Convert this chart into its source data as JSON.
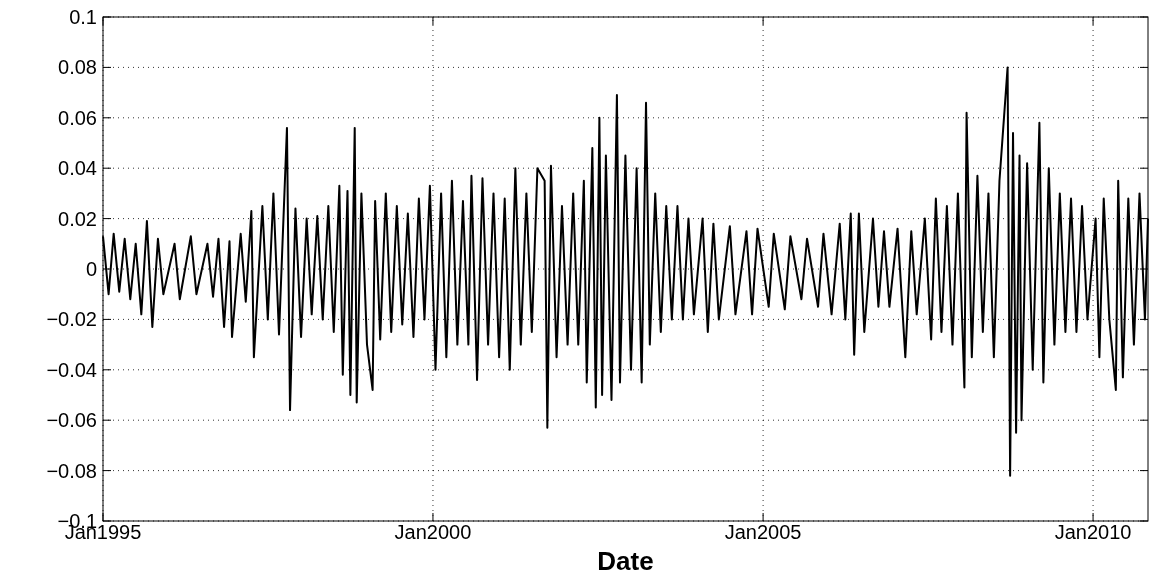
{
  "chart_data": {
    "type": "line",
    "xlabel": "Date",
    "grid": true,
    "xlim": [
      "1995-01-01",
      "2010-11-01"
    ],
    "xticks": [
      {
        "value": "1995-01-01",
        "label": "Jan1995"
      },
      {
        "value": "2000-01-01",
        "label": "Jan2000"
      },
      {
        "value": "2005-01-01",
        "label": "Jan2005"
      },
      {
        "value": "2010-01-01",
        "label": "Jan2010"
      }
    ],
    "ylim": [
      -0.1,
      0.1
    ],
    "yticks": [
      {
        "value": -0.1,
        "label": "−0.1"
      },
      {
        "value": -0.08,
        "label": "−0.08"
      },
      {
        "value": -0.06,
        "label": "−0.06"
      },
      {
        "value": -0.04,
        "label": "−0.04"
      },
      {
        "value": -0.02,
        "label": "−0.02"
      },
      0,
      0.02,
      0.04,
      0.06,
      0.08,
      0.1
    ],
    "series": [
      {
        "color": "#000000",
        "x": [
          "1995-01-01",
          "1995-02-01",
          "1995-03-01",
          "1995-04-01",
          "1995-05-01",
          "1995-06-01",
          "1995-07-01",
          "1995-08-01",
          "1995-09-01",
          "1995-10-01",
          "1995-11-01",
          "1995-12-01",
          "1996-02-01",
          "1996-03-01",
          "1996-05-01",
          "1996-06-01",
          "1996-08-01",
          "1996-09-01",
          "1996-10-01",
          "1996-11-01",
          "1996-12-01",
          "1996-12-15",
          "1997-02-01",
          "1997-03-01",
          "1997-04-01",
          "1997-04-15",
          "1997-06-01",
          "1997-07-01",
          "1997-08-01",
          "1997-09-01",
          "1997-10-15",
          "1997-11-01",
          "1997-12-01",
          "1998-01-01",
          "1998-02-01",
          "1998-03-01",
          "1998-04-01",
          "1998-05-01",
          "1998-06-01",
          "1998-07-01",
          "1998-08-01",
          "1998-08-20",
          "1998-09-15",
          "1998-10-01",
          "1998-10-25",
          "1998-11-05",
          "1998-12-01",
          "1999-01-01",
          "1999-02-01",
          "1999-02-15",
          "1999-03-15",
          "1999-04-15",
          "1999-05-15",
          "1999-06-15",
          "1999-07-15",
          "1999-08-15",
          "1999-09-15",
          "1999-10-15",
          "1999-11-15",
          "1999-12-15",
          "2000-01-15",
          "2000-02-15",
          "2000-03-15",
          "2000-04-15",
          "2000-05-15",
          "2000-06-15",
          "2000-07-15",
          "2000-08-01",
          "2000-09-01",
          "2000-10-01",
          "2000-11-01",
          "2000-12-01",
          "2001-01-01",
          "2001-02-01",
          "2001-03-01",
          "2001-04-01",
          "2001-05-01",
          "2001-06-01",
          "2001-07-01",
          "2001-08-01",
          "2001-09-10",
          "2001-09-25",
          "2001-10-15",
          "2001-11-15",
          "2001-12-15",
          "2002-01-15",
          "2002-02-15",
          "2002-03-15",
          "2002-04-15",
          "2002-05-01",
          "2002-06-01",
          "2002-06-20",
          "2002-07-10",
          "2002-07-25",
          "2002-08-15",
          "2002-09-15",
          "2002-10-15",
          "2002-11-01",
          "2002-12-01",
          "2003-01-01",
          "2003-02-01",
          "2003-03-01",
          "2003-03-25",
          "2003-04-15",
          "2003-05-15",
          "2003-06-15",
          "2003-07-15",
          "2003-08-15",
          "2003-09-15",
          "2003-10-15",
          "2003-11-15",
          "2003-12-15",
          "2004-02-01",
          "2004-03-01",
          "2004-04-01",
          "2004-05-01",
          "2004-07-01",
          "2004-08-01",
          "2004-10-01",
          "2004-11-01",
          "2004-12-01",
          "2005-02-01",
          "2005-03-01",
          "2005-05-01",
          "2005-06-01",
          "2005-08-01",
          "2005-09-01",
          "2005-11-01",
          "2005-12-01",
          "2006-01-15",
          "2006-03-01",
          "2006-04-01",
          "2006-05-01",
          "2006-05-20",
          "2006-06-15",
          "2006-07-15",
          "2006-09-01",
          "2006-10-01",
          "2006-11-01",
          "2006-12-01",
          "2007-01-15",
          "2007-02-27",
          "2007-04-01",
          "2007-05-01",
          "2007-06-15",
          "2007-07-20",
          "2007-08-15",
          "2007-09-15",
          "2007-10-15",
          "2007-11-15",
          "2007-12-15",
          "2008-01-20",
          "2008-02-01",
          "2008-03-01",
          "2008-04-01",
          "2008-05-01",
          "2008-06-01",
          "2008-07-01",
          "2008-08-01",
          "2008-09-15",
          "2008-09-29",
          "2008-10-15",
          "2008-11-01",
          "2008-11-20",
          "2008-12-01",
          "2009-01-01",
          "2009-02-01",
          "2009-03-10",
          "2009-04-01",
          "2009-05-01",
          "2009-06-01",
          "2009-07-01",
          "2009-08-01",
          "2009-09-01",
          "2009-10-01",
          "2009-11-01",
          "2009-12-01",
          "2010-01-15",
          "2010-02-05",
          "2010-03-01",
          "2010-04-01",
          "2010-05-07",
          "2010-05-20",
          "2010-06-15",
          "2010-07-15",
          "2010-08-15",
          "2010-09-15",
          "2010-10-15",
          "2010-11-01"
        ],
        "values": [
          0.013,
          -0.01,
          0.014,
          -0.009,
          0.012,
          -0.012,
          0.01,
          -0.018,
          0.019,
          -0.023,
          0.012,
          -0.01,
          0.01,
          -0.012,
          0.013,
          -0.01,
          0.01,
          -0.011,
          0.012,
          -0.023,
          0.011,
          -0.027,
          0.014,
          -0.013,
          0.023,
          -0.035,
          0.025,
          -0.02,
          0.03,
          -0.026,
          0.056,
          -0.056,
          0.024,
          -0.027,
          0.02,
          -0.018,
          0.021,
          -0.02,
          0.025,
          -0.025,
          0.033,
          -0.042,
          0.031,
          -0.05,
          0.056,
          -0.053,
          0.03,
          -0.03,
          -0.048,
          0.027,
          -0.028,
          0.03,
          -0.025,
          0.025,
          -0.022,
          0.022,
          -0.027,
          0.028,
          -0.02,
          0.033,
          -0.04,
          0.03,
          -0.035,
          0.035,
          -0.03,
          0.027,
          -0.03,
          0.037,
          -0.044,
          0.036,
          -0.03,
          0.03,
          -0.035,
          0.028,
          -0.04,
          0.04,
          -0.03,
          0.03,
          -0.025,
          0.04,
          0.035,
          -0.063,
          0.041,
          -0.035,
          0.025,
          -0.03,
          0.03,
          -0.03,
          0.035,
          -0.045,
          0.048,
          -0.055,
          0.06,
          -0.05,
          0.045,
          -0.052,
          0.069,
          -0.045,
          0.045,
          -0.04,
          0.04,
          -0.045,
          0.066,
          -0.03,
          0.03,
          -0.025,
          0.025,
          -0.02,
          0.025,
          -0.02,
          0.02,
          -0.018,
          0.02,
          -0.025,
          0.018,
          -0.02,
          0.017,
          -0.018,
          0.015,
          -0.018,
          0.016,
          -0.015,
          0.014,
          -0.016,
          0.013,
          -0.012,
          0.012,
          -0.015,
          0.014,
          -0.018,
          0.018,
          -0.02,
          0.022,
          -0.034,
          0.022,
          -0.025,
          0.02,
          -0.015,
          0.015,
          -0.015,
          0.016,
          -0.035,
          0.015,
          -0.018,
          0.02,
          -0.028,
          0.028,
          -0.025,
          0.025,
          -0.03,
          0.03,
          -0.047,
          0.062,
          -0.035,
          0.037,
          -0.025,
          0.03,
          -0.035,
          0.035,
          0.08,
          -0.082,
          0.054,
          -0.065,
          0.045,
          -0.06,
          0.042,
          -0.04,
          0.058,
          -0.045,
          0.04,
          -0.03,
          0.03,
          -0.025,
          0.028,
          -0.025,
          0.025,
          -0.02,
          0.02,
          -0.035,
          0.028,
          -0.02,
          -0.048,
          0.035,
          -0.043,
          0.028,
          -0.03,
          0.03,
          -0.02,
          0.02
        ]
      }
    ]
  }
}
